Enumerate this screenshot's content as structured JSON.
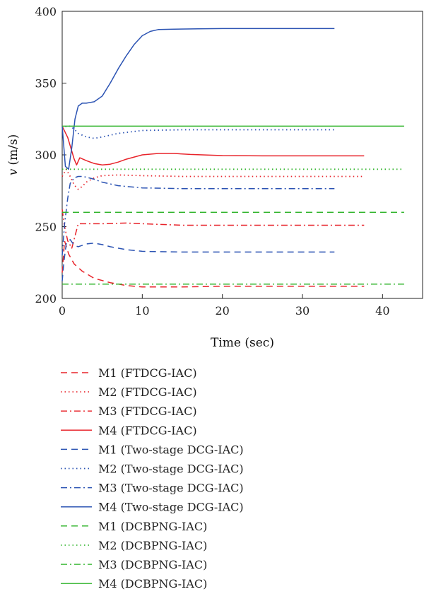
{
  "chart_data": {
    "type": "line",
    "title": "",
    "xlabel": "Time (sec)",
    "ylabel_italic": "v",
    "ylabel_unit": "(m/s)",
    "xlim": [
      0,
      45
    ],
    "ylim": [
      200,
      400
    ],
    "xticks": [
      "0",
      "10",
      "20",
      "30",
      "40"
    ],
    "yticks": [
      "200",
      "250",
      "300",
      "350",
      "400"
    ],
    "xtick_values": [
      0,
      10,
      20,
      30,
      40
    ],
    "ytick_values": [
      200,
      250,
      300,
      350,
      400
    ],
    "grid": false,
    "legend_position": "below",
    "series": [
      {
        "name": "M1 (FTDCG-IAC)",
        "color": "#e8232a",
        "dash": "dashed",
        "x": [
          0,
          0.3,
          0.8,
          1.5,
          2.5,
          4,
          6,
          8,
          10,
          12,
          15,
          20,
          30,
          37.7
        ],
        "y": [
          218,
          240,
          231,
          224,
          219,
          214,
          211,
          209,
          208,
          208,
          208,
          208.5,
          208.5,
          208.5
        ]
      },
      {
        "name": "M2 (FTDCG-IAC)",
        "color": "#e8232a",
        "dash": "dotted",
        "x": [
          0,
          0.5,
          1,
          1.5,
          2,
          2.5,
          3,
          4,
          5,
          7,
          10,
          15,
          20,
          30,
          37.7
        ],
        "y": [
          285,
          290,
          285,
          279,
          276,
          278,
          281,
          284,
          285.5,
          286,
          285.5,
          285,
          285,
          285,
          285
        ]
      },
      {
        "name": "M3 (FTDCG-IAC)",
        "color": "#e8232a",
        "dash": "dashdot",
        "x": [
          0,
          0.3,
          0.7,
          1.2,
          2,
          3,
          5,
          8,
          10,
          15,
          20,
          30,
          37.7
        ],
        "y": [
          262,
          250,
          240,
          235,
          252,
          252,
          252,
          252.5,
          252,
          251,
          251,
          251,
          251
        ]
      },
      {
        "name": "M4 (FTDCG-IAC)",
        "color": "#e8232a",
        "dash": "solid",
        "x": [
          0,
          0.7,
          1.5,
          1.8,
          2.2,
          3,
          4,
          5,
          6,
          7,
          8,
          10,
          12,
          14,
          16,
          20,
          25,
          30,
          37.7
        ],
        "y": [
          320,
          312,
          297,
          293,
          298,
          296,
          294,
          293,
          293.5,
          295,
          297,
          300,
          301,
          301,
          300.3,
          299.5,
          299.3,
          299.3,
          299.3
        ]
      },
      {
        "name": "M1 (Two-stage DCG-IAC)",
        "color": "#2b53b3",
        "dash": "dashed",
        "x": [
          0,
          0.2,
          0.5,
          1,
          1.5,
          2,
          3,
          4,
          5,
          6,
          8,
          10,
          15,
          20,
          30,
          34
        ],
        "y": [
          212,
          225,
          238,
          241,
          237,
          236,
          238,
          238.5,
          237.5,
          236,
          234,
          232.8,
          232.3,
          232.3,
          232.3,
          232.3
        ]
      },
      {
        "name": "M2 (Two-stage DCG-IAC)",
        "color": "#2b53b3",
        "dash": "dotted",
        "x": [
          0,
          0.5,
          1,
          1.5,
          2,
          3,
          4,
          5,
          7,
          10,
          15,
          20,
          30,
          34
        ],
        "y": [
          318,
          320,
          320,
          318,
          315,
          312.5,
          311.5,
          312.5,
          315,
          317,
          317.5,
          317.5,
          317.5,
          317.5
        ]
      },
      {
        "name": "M3 (Two-stage DCG-IAC)",
        "color": "#2b53b3",
        "dash": "dashdot",
        "x": [
          0,
          0.3,
          0.7,
          1,
          1.5,
          2,
          2.5,
          3,
          4,
          5,
          7,
          10,
          15,
          20,
          30,
          34
        ],
        "y": [
          230,
          252,
          270,
          280,
          284,
          285,
          285,
          284.5,
          283,
          281,
          278.5,
          277,
          276.5,
          276.5,
          276.5,
          276.5
        ]
      },
      {
        "name": "M4 (Two-stage DCG-IAC)",
        "color": "#2b53b3",
        "dash": "solid",
        "x": [
          0,
          0.4,
          0.8,
          1.2,
          1.6,
          2,
          2.5,
          3,
          4,
          5,
          6,
          7,
          8,
          9,
          10,
          11,
          12,
          14,
          17,
          20,
          25,
          30,
          34
        ],
        "y": [
          320,
          292,
          290,
          305,
          325,
          334,
          336,
          336,
          337,
          341,
          350,
          360,
          369,
          377,
          383,
          386,
          387.3,
          387.6,
          387.8,
          388,
          388,
          388,
          388
        ]
      },
      {
        "name": "M1 (DCBPNG-IAC)",
        "color": "#33b52e",
        "dash": "dashed",
        "x": [
          0,
          42.7
        ],
        "y": [
          260,
          260
        ]
      },
      {
        "name": "M2 (DCBPNG-IAC)",
        "color": "#33b52e",
        "dash": "dotted",
        "x": [
          0,
          42.7
        ],
        "y": [
          290,
          290
        ]
      },
      {
        "name": "M3 (DCBPNG-IAC)",
        "color": "#33b52e",
        "dash": "dashdot",
        "x": [
          0,
          42.7
        ],
        "y": [
          210,
          210
        ]
      },
      {
        "name": "M4 (DCBPNG-IAC)",
        "color": "#33b52e",
        "dash": "solid",
        "x": [
          0,
          42.7
        ],
        "y": [
          320,
          320
        ]
      }
    ]
  }
}
